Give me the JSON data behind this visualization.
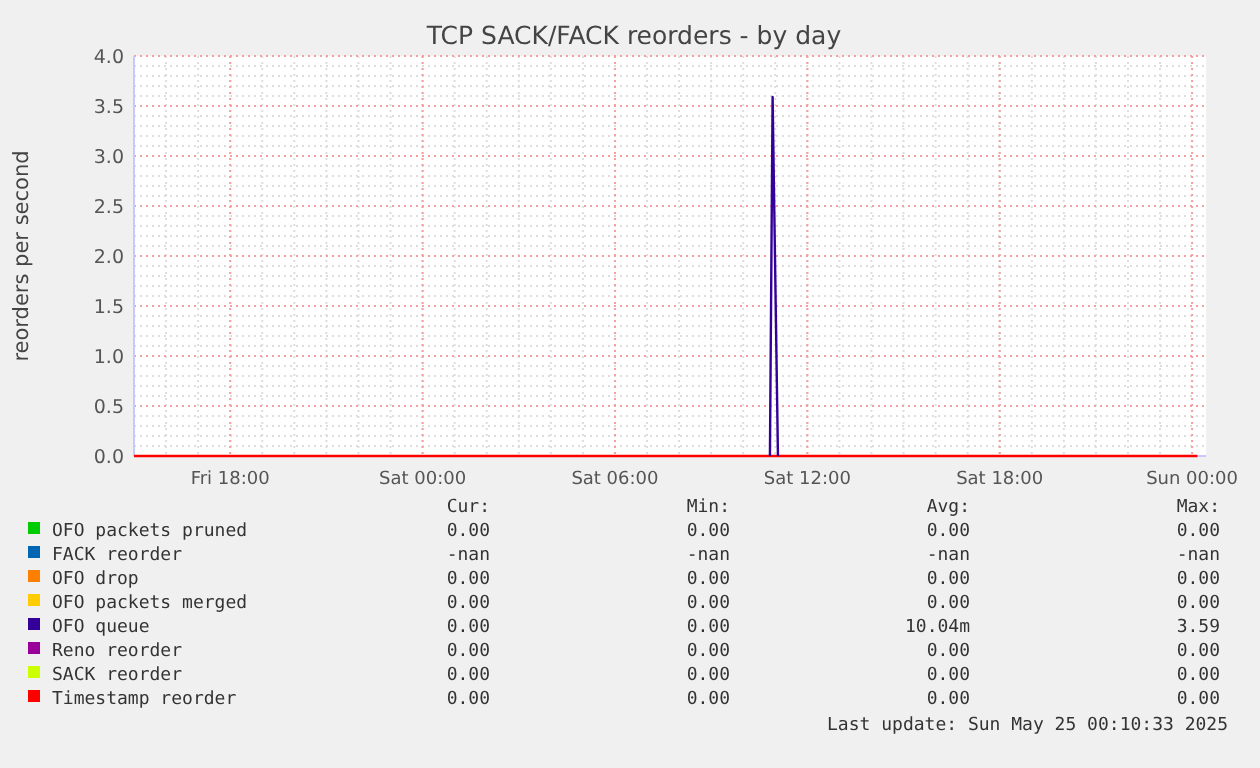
{
  "chart_data": {
    "type": "line",
    "title": "TCP SACK/FACK reorders - by day",
    "ylabel": "reorders per second",
    "xlim": [
      "2025-05-23T15:00",
      "2025-05-25T00:26"
    ],
    "xticks": [
      {
        "value": "2025-05-23T18:00",
        "label": "Fri 18:00"
      },
      {
        "value": "2025-05-24T00:00",
        "label": "Sat 00:00"
      },
      {
        "value": "2025-05-24T06:00",
        "label": "Sat 06:00"
      },
      {
        "value": "2025-05-24T12:00",
        "label": "Sat 12:00"
      },
      {
        "value": "2025-05-24T18:00",
        "label": "Sat 18:00"
      },
      {
        "value": "2025-05-25T00:00",
        "label": "Sun 00:00"
      }
    ],
    "ylim": [
      0,
      4
    ],
    "yticks": [
      {
        "value": 0,
        "label": "0.0"
      },
      {
        "value": 0.5,
        "label": "0.5"
      },
      {
        "value": 1,
        "label": "1.0"
      },
      {
        "value": 1.5,
        "label": "1.5"
      },
      {
        "value": 2,
        "label": "2.0"
      },
      {
        "value": 2.5,
        "label": "2.5"
      },
      {
        "value": 3,
        "label": "3.0"
      },
      {
        "value": 3.5,
        "label": "3.5"
      },
      {
        "value": 4,
        "label": "4.0"
      }
    ],
    "grid": true,
    "legend": "bottom",
    "marker": "none",
    "line_style": "solid",
    "series": [
      {
        "name": "OFO packets pruned",
        "color": "#00cc00"
      },
      {
        "name": "FACK reorder",
        "color": "#0066b3"
      },
      {
        "name": "OFO drop",
        "color": "#ff8000"
      },
      {
        "name": "OFO packets merged",
        "color": "#ffcc00"
      },
      {
        "name": "OFO queue",
        "color": "#330099",
        "x": [
          "2025-05-24T10:50",
          "2025-05-24T10:55",
          "2025-05-24T11:05"
        ],
        "values": [
          0,
          3.59,
          0
        ]
      },
      {
        "name": "Reno reorder",
        "color": "#990099"
      },
      {
        "name": "SACK reorder",
        "color": "#ccff00"
      },
      {
        "name": "Timestamp reorder",
        "color": "#ff0000",
        "x": [
          "2025-05-23T15:00",
          "2025-05-25T00:10"
        ],
        "values": [
          0,
          0
        ]
      }
    ],
    "annotations": [
      "Cur:",
      "Min:",
      "Avg:",
      "Max:",
      "0.00",
      "0.00",
      "0.00",
      "0.00",
      "-nan",
      "-nan",
      "-nan",
      "-nan",
      "0.00",
      "0.00",
      "0.00",
      "0.00",
      "0.00",
      "0.00",
      "0.00",
      "0.00",
      "0.00",
      "0.00",
      "10.04m",
      "3.59",
      "0.00",
      "0.00",
      "0.00",
      "0.00",
      "0.00",
      "0.00",
      "0.00",
      "0.00",
      "0.00",
      "0.00",
      "0.00",
      "0.00",
      "Last update: Sun May 25 00:10:33 2025"
    ]
  }
}
